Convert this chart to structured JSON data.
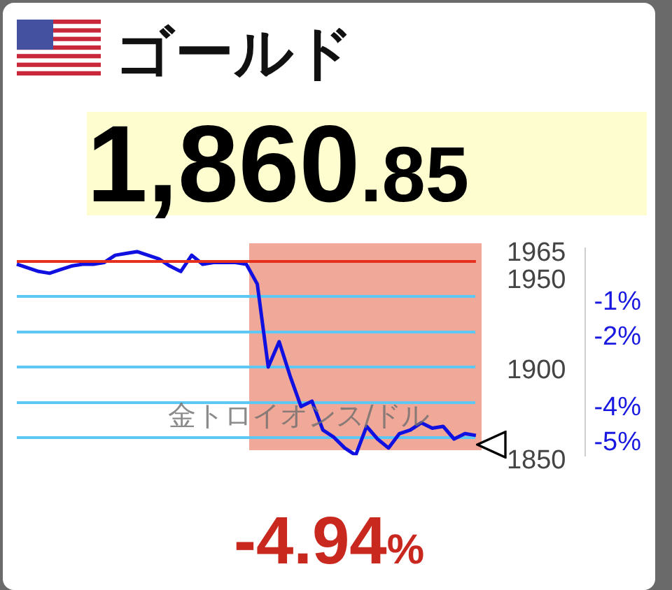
{
  "chart_data": {
    "type": "line",
    "title": "ゴールド",
    "subtitle": "1,860.85",
    "annotations": [
      "-4.94%",
      "金トロイオンス/ドル"
    ],
    "categories": [
      null,
      null,
      null,
      null,
      null,
      null,
      null,
      null,
      null,
      null,
      null,
      null,
      null,
      null,
      null,
      null,
      null,
      null,
      null,
      null,
      null,
      null,
      null,
      null,
      null,
      null,
      null,
      null,
      null,
      null,
      null,
      null,
      null,
      null,
      null,
      null,
      null,
      null,
      null,
      null,
      null,
      null,
      null
    ],
    "series": [
      {
        "color": "#1010e0",
        "values": [
          1956,
          1954,
          1952,
          1951,
          1953,
          1955,
          1956,
          1956,
          1957,
          1961,
          1962,
          1963,
          1961,
          1959,
          1955,
          1952,
          1961,
          1956,
          1957,
          1957,
          1957,
          1956,
          1945,
          1899,
          1913,
          1894,
          1877,
          1880,
          1864,
          1860,
          1854,
          1850,
          1866,
          1859,
          1854,
          1862,
          1864,
          1868,
          1865,
          1866,
          1859,
          1862,
          1861
        ]
      }
    ],
    "ylim": [
      1850,
      1965
    ],
    "yticks": [
      1965,
      1950,
      1900,
      1850
    ],
    "y2lim": [
      -5.5,
      0.38
    ],
    "y2ticks": [
      {
        "value": -1,
        "label": "-1%"
      },
      {
        "value": -2,
        "label": "-2%"
      },
      {
        "value": -3,
        "label": null
      },
      {
        "value": -4,
        "label": "-4%"
      },
      {
        "value": -5,
        "label": "-5%"
      }
    ],
    "ref_lines": [
      {
        "axis": "y",
        "value": 1957.55,
        "color": "#e53020"
      }
    ],
    "grid": "y",
    "legend": false,
    "marker": "none",
    "line_style": "solid"
  }
}
